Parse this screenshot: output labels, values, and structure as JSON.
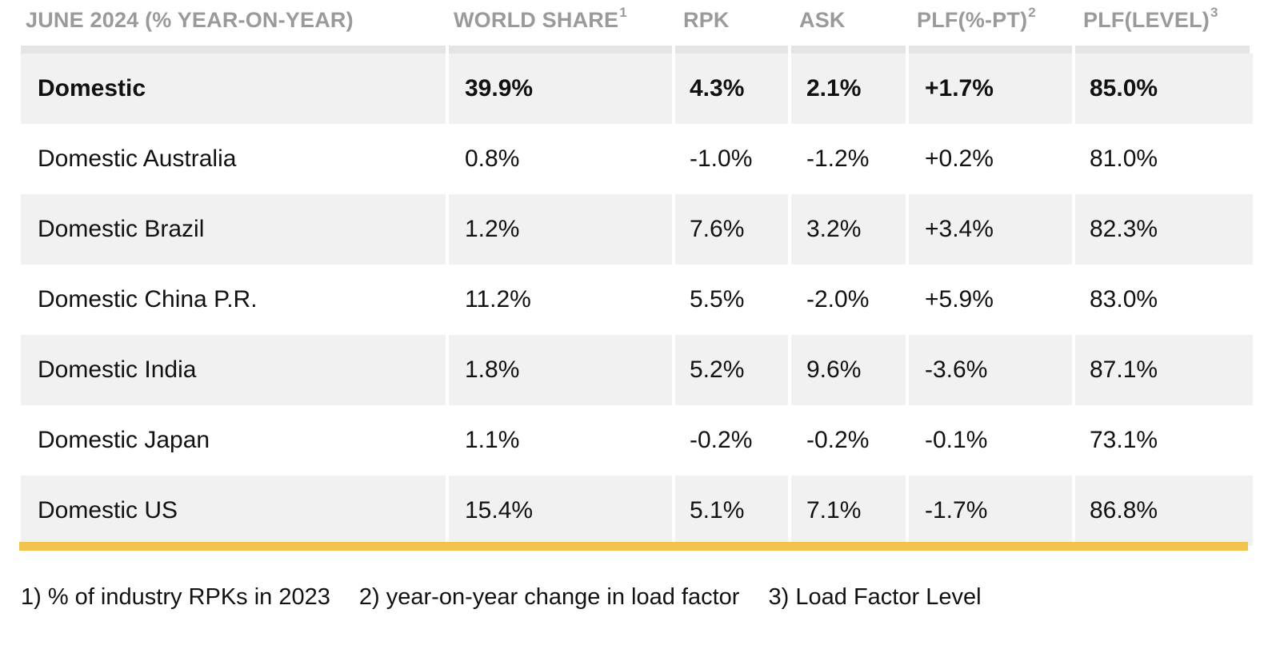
{
  "colors": {
    "accent": "#F0C44C",
    "header_text": "#9A9A9A",
    "row_shade": "#F1F1F1",
    "header_strip": "#E4E4E4"
  },
  "header": {
    "c0": "JUNE 2024 (% YEAR-ON-YEAR)",
    "c1": "WORLD SHARE",
    "c1_sup": "1",
    "c2": "RPK",
    "c3": "ASK",
    "c4": "PLF(%-PT)",
    "c4_sup": "2",
    "c5": "PLF(LEVEL)",
    "c5_sup": "3"
  },
  "rows": [
    {
      "market": "Domestic",
      "world_share": "39.9%",
      "rpk": "4.3%",
      "ask": "2.1%",
      "plf_pt": "+1.7%",
      "plf_level": "85.0%"
    },
    {
      "market": "Domestic Australia",
      "world_share": "0.8%",
      "rpk": "-1.0%",
      "ask": "-1.2%",
      "plf_pt": "+0.2%",
      "plf_level": "81.0%"
    },
    {
      "market": "Domestic Brazil",
      "world_share": "1.2%",
      "rpk": "7.6%",
      "ask": "3.2%",
      "plf_pt": "+3.4%",
      "plf_level": "82.3%"
    },
    {
      "market": "Domestic China P.R.",
      "world_share": "11.2%",
      "rpk": "5.5%",
      "ask": "-2.0%",
      "plf_pt": "+5.9%",
      "plf_level": "83.0%"
    },
    {
      "market": "Domestic India",
      "world_share": "1.8%",
      "rpk": "5.2%",
      "ask": "9.6%",
      "plf_pt": "-3.6%",
      "plf_level": "87.1%"
    },
    {
      "market": "Domestic Japan",
      "world_share": "1.1%",
      "rpk": "-0.2%",
      "ask": "-0.2%",
      "plf_pt": "-0.1%",
      "plf_level": "73.1%"
    },
    {
      "market": "Domestic US",
      "world_share": "15.4%",
      "rpk": "5.1%",
      "ask": "7.1%",
      "plf_pt": "-1.7%",
      "plf_level": "86.8%"
    }
  ],
  "footnotes": {
    "f1": "1) % of industry RPKs in 2023",
    "f2": "2) year-on-year change in load factor",
    "f3": "3) Load Factor Level"
  }
}
